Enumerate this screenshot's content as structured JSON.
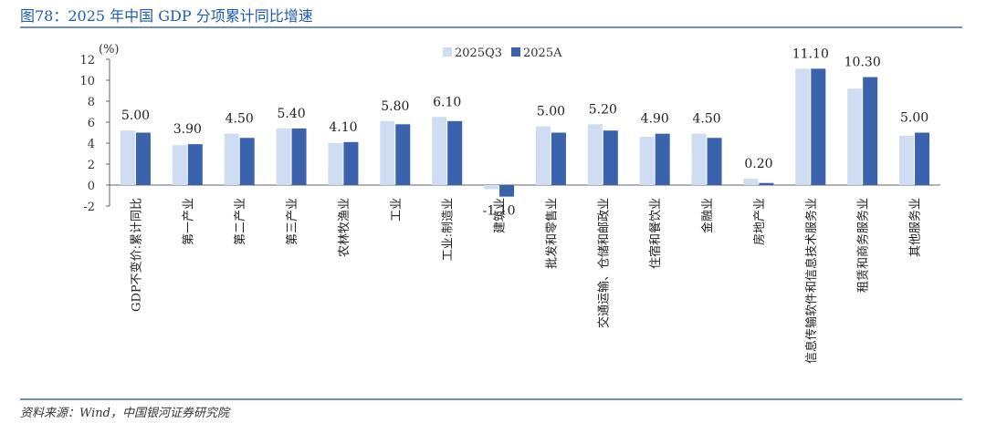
{
  "figure_title": "图78：2025 年中国 GDP 分项累计同比增速",
  "source": "资料来源：Wind，中国银河证券研究院",
  "colors": {
    "q3": "#cfdcf1",
    "annual": "#3a62ad",
    "accent": "#1f5bb0",
    "axis": "#666666"
  },
  "chart_data": {
    "type": "bar",
    "title": "",
    "ylabel": "(%)",
    "xlabel": "",
    "ylim": [
      -2,
      12
    ],
    "yticks": [
      -2,
      0,
      2,
      4,
      6,
      8,
      10,
      12
    ],
    "legend_position": "top-center",
    "categories": [
      "GDP不变价:累计同比",
      "第一产业",
      "第二产业",
      "第三产业",
      "农林牧渔业",
      "工业",
      "工业:制造业",
      "建筑业",
      "批发和零售业",
      "交通运输、仓储和邮政业",
      "住宿和餐饮业",
      "金融业",
      "房地产业",
      "信息传输软件和信息技术服务业",
      "租赁和商务服务业",
      "其他服务业"
    ],
    "series": [
      {
        "name": "2025Q3",
        "values": [
          5.2,
          3.8,
          4.9,
          5.4,
          4.0,
          6.1,
          6.5,
          -0.4,
          5.6,
          5.8,
          4.6,
          4.9,
          0.6,
          11.1,
          9.2,
          4.7
        ]
      },
      {
        "name": "2025A",
        "values": [
          5.0,
          3.9,
          4.5,
          5.4,
          4.1,
          5.8,
          6.1,
          -1.1,
          5.0,
          5.2,
          4.9,
          4.5,
          0.2,
          11.1,
          10.3,
          5.0
        ]
      }
    ],
    "data_labels": [
      "5.00",
      "3.90",
      "4.50",
      "5.40",
      "4.10",
      "5.80",
      "6.10",
      "-1.10",
      "5.00",
      "5.20",
      "4.90",
      "4.50",
      "0.20",
      "11.10",
      "10.30",
      "5.00"
    ]
  }
}
